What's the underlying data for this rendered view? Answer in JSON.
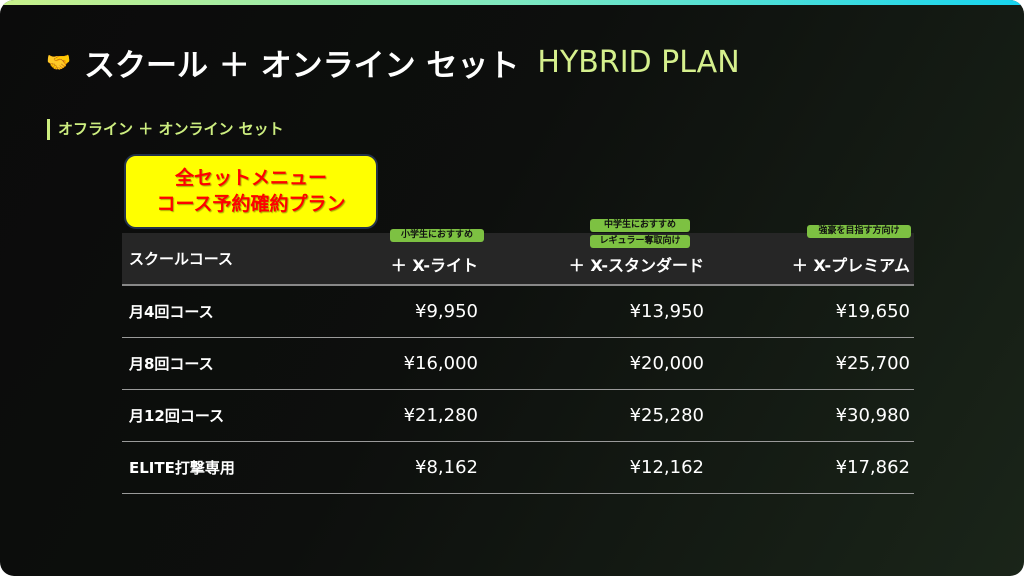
{
  "header": {
    "icon": "handshake-icon",
    "title_jp": "スクール ＋ オンライン セット",
    "title_en": "HYBRID PLAN"
  },
  "section_title": "オフライン ＋ オンライン セット",
  "promo": {
    "line1": "全セットメニュー",
    "line2": "コース予約確約プラン"
  },
  "colors": {
    "accent": "#cdee80",
    "badge": "#7dc142",
    "promo_bg": "#ffff00",
    "promo_text": "#ff0000"
  },
  "table": {
    "headers": [
      "スクールコース",
      "＋ X-ライト",
      "＋ X-スタンダード",
      "＋ X-プレミアム"
    ],
    "badges": {
      "lite": [
        "小学生におすすめ"
      ],
      "standard": [
        "中学生におすすめ",
        "レギュラー奪取向け"
      ],
      "premium": [
        "強豪を目指す方向け"
      ]
    },
    "rows": [
      {
        "course": "月4回コース",
        "lite": "¥9,950",
        "standard": "¥13,950",
        "premium": "¥19,650"
      },
      {
        "course": "月8回コース",
        "lite": "¥16,000",
        "standard": "¥20,000",
        "premium": "¥25,700"
      },
      {
        "course": "月12回コース",
        "lite": "¥21,280",
        "standard": "¥25,280",
        "premium": "¥30,980"
      },
      {
        "course": "ELITE打撃専用",
        "lite": "¥8,162",
        "standard": "¥12,162",
        "premium": "¥17,862"
      }
    ]
  }
}
